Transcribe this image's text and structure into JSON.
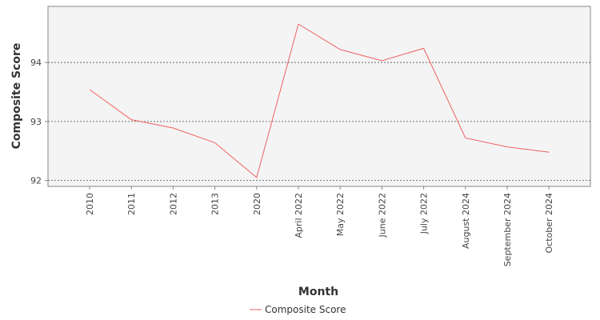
{
  "chart_data": {
    "type": "line",
    "categories": [
      "2010",
      "2011",
      "2012",
      "2013",
      "2020",
      "April 2022",
      "May 2022",
      "June 2022",
      "July 2022",
      "August 2024",
      "September 2024",
      "October 2024"
    ],
    "series": [
      {
        "name": "Composite Score",
        "values": [
          93.54,
          93.03,
          92.89,
          92.64,
          92.05,
          94.65,
          94.22,
          94.03,
          94.24,
          92.72,
          92.57,
          92.48
        ]
      }
    ],
    "xlabel": "Month",
    "ylabel": "Composite Score",
    "ylim": [
      91.9,
      94.95
    ],
    "yticks": [
      92,
      93,
      94
    ],
    "grid": "horizontal-dashed",
    "legend_position": "bottom-center",
    "colors": {
      "series": "#f06060",
      "plot_background": "#f4f4f4",
      "plot_border": "#888888",
      "grid": "#555555"
    }
  }
}
